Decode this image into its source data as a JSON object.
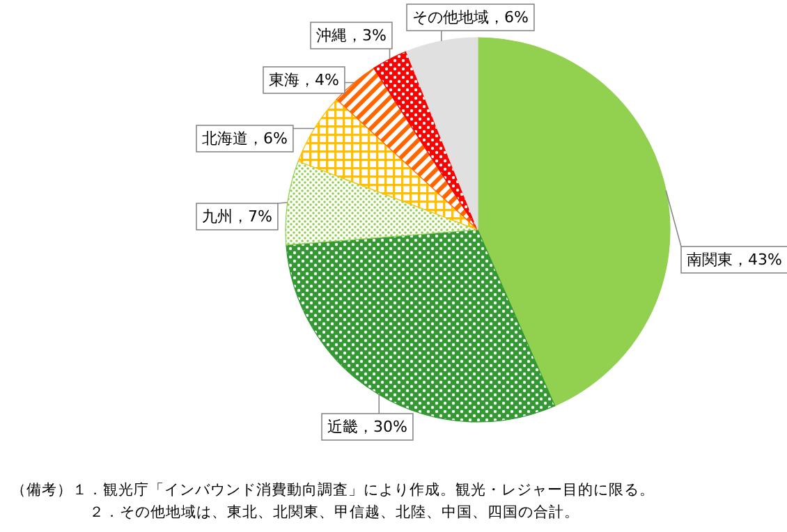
{
  "chart_data": {
    "type": "pie",
    "categories": [
      "南関東",
      "近畿",
      "九州",
      "北海道",
      "東海",
      "沖縄",
      "その他地域"
    ],
    "values": [
      43,
      30,
      7,
      6,
      4,
      3,
      6
    ],
    "colors": [
      "#92d050",
      "#339933",
      "#92d050",
      "#ffc000",
      "#ff6600",
      "#ff0000",
      "#e0e0e0"
    ],
    "value_labels": [
      "，43%",
      "，30%",
      "，7%",
      "，6%",
      "，4%",
      "，3%",
      "，6%"
    ],
    "annotations": [
      "（備考）１．観光庁「インバウンド消費動向調査」により作成。観光・レジャー目的に限る。",
      "２．その他地域は、東北、北関東、甲信越、北陸、中国、四国の合計。"
    ]
  }
}
